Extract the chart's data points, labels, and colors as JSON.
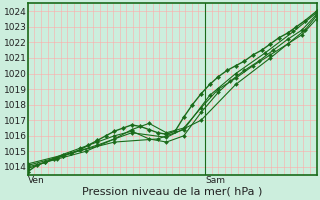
{
  "bg_color": "#cceedd",
  "grid_color_h": "#ffaaaa",
  "grid_color_v": "#ffaaaa",
  "line_color": "#1a6b1a",
  "marker_color": "#1a6b1a",
  "border_color": "#1a6b1a",
  "xlabel": "Pression niveau de la mer( hPa )",
  "xlabel_fontsize": 8,
  "tick_label_fontsize": 6.5,
  "ylim": [
    1013.5,
    1024.5
  ],
  "yticks": [
    1014,
    1015,
    1016,
    1017,
    1018,
    1019,
    1020,
    1021,
    1022,
    1023,
    1024
  ],
  "n_xcols": 44,
  "vline_x": 0.615,
  "series": [
    [
      0.0,
      1013.7
    ],
    [
      0.03,
      1014.1
    ],
    [
      0.06,
      1014.3
    ],
    [
      0.09,
      1014.5
    ],
    [
      0.12,
      1014.7
    ],
    [
      0.15,
      1014.9
    ],
    [
      0.18,
      1015.1
    ],
    [
      0.21,
      1015.4
    ],
    [
      0.24,
      1015.7
    ],
    [
      0.27,
      1016.0
    ],
    [
      0.3,
      1016.3
    ],
    [
      0.33,
      1016.5
    ],
    [
      0.36,
      1016.7
    ],
    [
      0.39,
      1016.6
    ],
    [
      0.42,
      1016.4
    ],
    [
      0.45,
      1016.2
    ],
    [
      0.48,
      1016.1
    ],
    [
      0.51,
      1016.3
    ],
    [
      0.54,
      1017.2
    ],
    [
      0.57,
      1018.0
    ],
    [
      0.6,
      1018.7
    ],
    [
      0.63,
      1019.3
    ],
    [
      0.66,
      1019.8
    ],
    [
      0.69,
      1020.2
    ],
    [
      0.72,
      1020.5
    ],
    [
      0.75,
      1020.8
    ],
    [
      0.78,
      1021.2
    ],
    [
      0.81,
      1021.5
    ],
    [
      0.84,
      1021.9
    ],
    [
      0.87,
      1022.3
    ],
    [
      0.9,
      1022.6
    ],
    [
      0.93,
      1023.0
    ],
    [
      0.96,
      1023.4
    ],
    [
      1.0,
      1024.0
    ]
  ],
  "series2": [
    [
      0.0,
      1013.9
    ],
    [
      0.06,
      1014.3
    ],
    [
      0.12,
      1014.8
    ],
    [
      0.18,
      1015.2
    ],
    [
      0.24,
      1015.6
    ],
    [
      0.3,
      1016.0
    ],
    [
      0.36,
      1016.3
    ],
    [
      0.42,
      1015.8
    ],
    [
      0.48,
      1015.6
    ],
    [
      0.54,
      1016.0
    ],
    [
      0.6,
      1017.5
    ],
    [
      0.66,
      1018.8
    ],
    [
      0.7,
      1019.5
    ],
    [
      0.75,
      1020.2
    ],
    [
      0.8,
      1020.8
    ],
    [
      0.85,
      1021.5
    ],
    [
      0.9,
      1022.2
    ],
    [
      0.95,
      1022.8
    ],
    [
      1.0,
      1023.8
    ]
  ],
  "series3": [
    [
      0.0,
      1014.0
    ],
    [
      0.1,
      1014.5
    ],
    [
      0.2,
      1015.0
    ],
    [
      0.3,
      1015.8
    ],
    [
      0.36,
      1016.4
    ],
    [
      0.42,
      1016.8
    ],
    [
      0.48,
      1016.2
    ],
    [
      0.54,
      1016.5
    ],
    [
      0.6,
      1017.8
    ],
    [
      0.66,
      1019.0
    ],
    [
      0.72,
      1019.7
    ],
    [
      0.78,
      1020.5
    ],
    [
      0.84,
      1021.2
    ],
    [
      0.9,
      1021.9
    ],
    [
      0.95,
      1022.5
    ],
    [
      1.0,
      1023.5
    ]
  ],
  "series4": [
    [
      0.0,
      1014.1
    ],
    [
      0.12,
      1014.7
    ],
    [
      0.24,
      1015.4
    ],
    [
      0.36,
      1016.2
    ],
    [
      0.48,
      1015.9
    ],
    [
      0.6,
      1017.0
    ],
    [
      0.72,
      1019.3
    ],
    [
      0.84,
      1021.0
    ],
    [
      0.96,
      1022.8
    ],
    [
      1.0,
      1023.7
    ]
  ],
  "series5": [
    [
      0.0,
      1014.2
    ],
    [
      0.15,
      1014.9
    ],
    [
      0.3,
      1015.6
    ],
    [
      0.45,
      1015.8
    ],
    [
      0.54,
      1016.4
    ],
    [
      0.63,
      1018.6
    ],
    [
      0.72,
      1020.0
    ],
    [
      0.82,
      1021.3
    ],
    [
      0.92,
      1022.7
    ],
    [
      1.0,
      1023.9
    ]
  ]
}
